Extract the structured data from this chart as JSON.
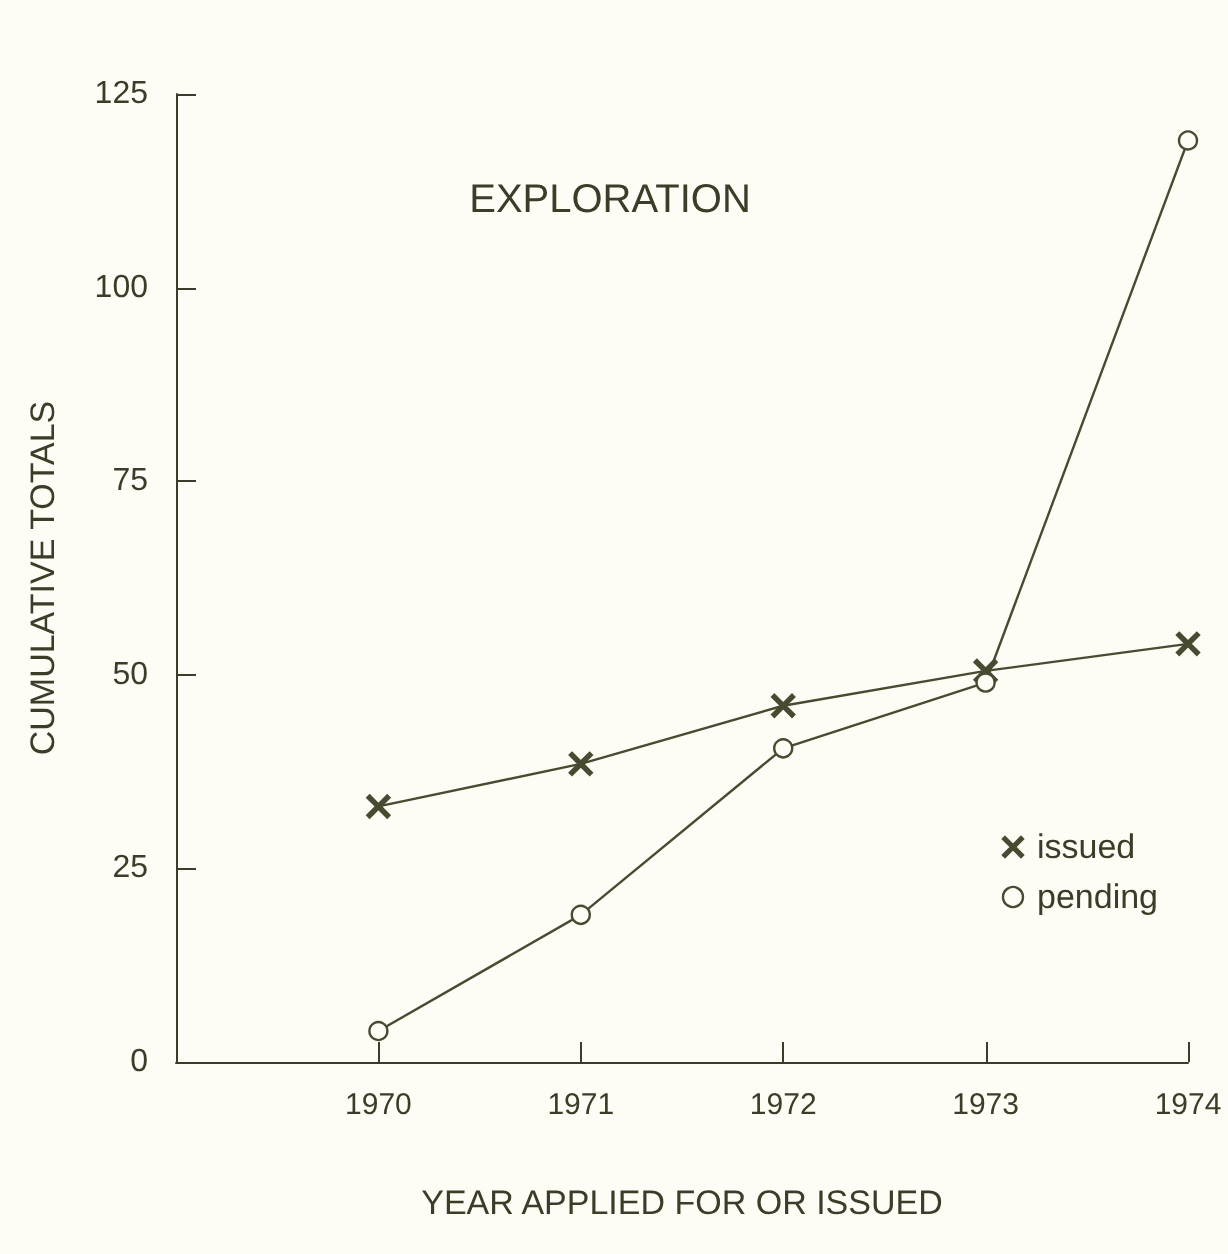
{
  "chart_data": {
    "type": "line",
    "title": "EXPLORATION",
    "xlabel": "YEAR APPLIED FOR OR ISSUED",
    "ylabel": "CUMULATIVE TOTALS",
    "x": [
      1970,
      1971,
      1972,
      1973,
      1974
    ],
    "series": [
      {
        "name": "issued",
        "color": "#4a4a32",
        "marker": "cross",
        "values": [
          33,
          38.5,
          46,
          50.5,
          54
        ]
      },
      {
        "name": "pending",
        "color": "#4a4a32",
        "marker": "circle",
        "values": [
          4,
          19,
          40.5,
          49,
          119
        ]
      }
    ],
    "xlim": [
      1969,
      1974
    ],
    "xticks": [
      1970,
      1971,
      1972,
      1973,
      1974
    ],
    "ylim": [
      0,
      125
    ],
    "yticks": [
      0,
      25,
      50,
      75,
      100,
      125
    ],
    "grid": false,
    "legend": "right",
    "line_style": "solid"
  }
}
